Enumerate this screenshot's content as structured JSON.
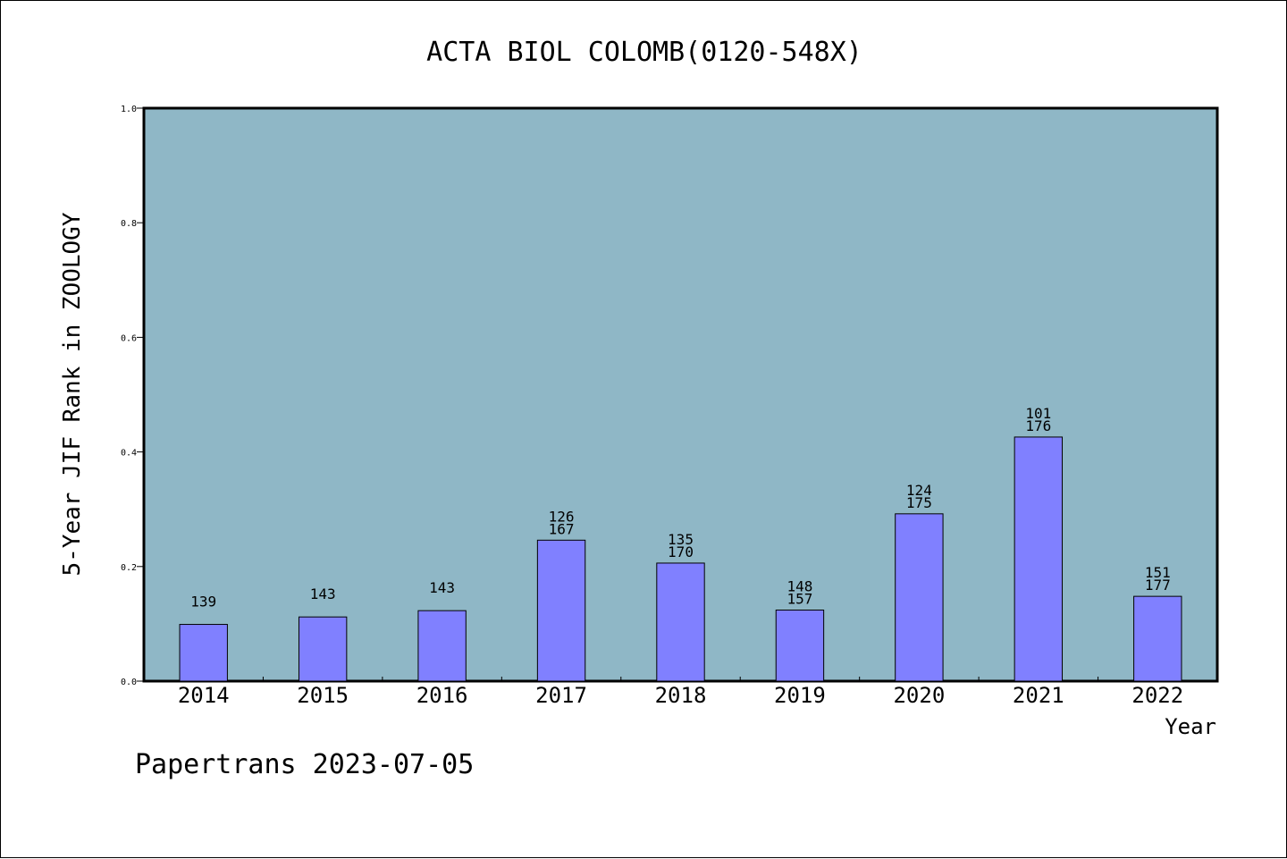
{
  "chart_data": {
    "type": "bar",
    "title": "ACTA BIOL COLOMB(0120-548X)",
    "xlabel": "Year",
    "ylabel": "5-Year JIF Rank in ZOOLOGY",
    "ylim": [
      0,
      1.0
    ],
    "yticks": [
      "0.0",
      "0.2",
      "0.4",
      "0.6",
      "0.8",
      "1.0"
    ],
    "grid": false,
    "categories": [
      "2014",
      "2015",
      "2016",
      "2017",
      "2018",
      "2019",
      "2020",
      "2021",
      "2022"
    ],
    "values": [
      0.099,
      0.112,
      0.123,
      0.246,
      0.206,
      0.124,
      0.292,
      0.426,
      0.148
    ],
    "bar_labels": [
      [
        "139"
      ],
      [
        "143"
      ],
      [
        "143"
      ],
      [
        "126",
        "167"
      ],
      [
        "135",
        "170"
      ],
      [
        "148",
        "157"
      ],
      [
        "124",
        "175"
      ],
      [
        "101",
        "176"
      ],
      [
        "151",
        "177"
      ]
    ],
    "colors": {
      "plot_background": "#8fb7c6",
      "bar": "#8080ff",
      "bar_edge": "#000000",
      "page_background": "#ffffff"
    }
  },
  "footer": "Papertrans 2023-07-05"
}
